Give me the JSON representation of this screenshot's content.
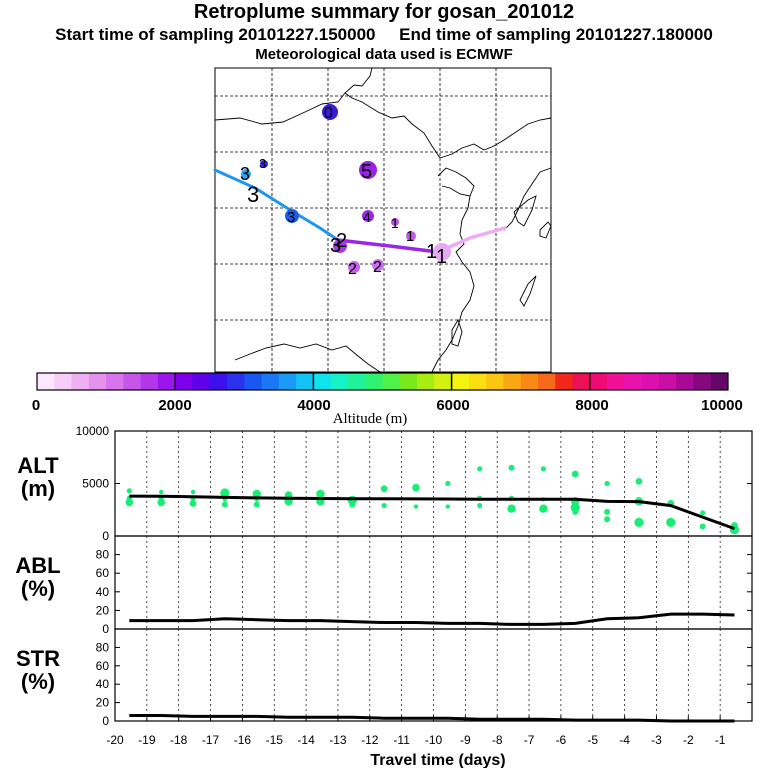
{
  "header": {
    "title": "Retroplume summary for gosan_201012",
    "sampling": "Start time of sampling 20101227.150000     End time of sampling 20101227.180000",
    "meteo": "Meteorological data used is ECMWF"
  },
  "colorbar": {
    "xlabel": "Altitude (m)",
    "ticks": [
      "0",
      "2000",
      "4000",
      "6000",
      "8000",
      "10000"
    ],
    "colors": [
      "#ffe6ff",
      "#f7ccf7",
      "#eeb0f2",
      "#e592ee",
      "#d874ec",
      "#c656ea",
      "#b236ea",
      "#9a16ec",
      "#7e00ea",
      "#5e00ea",
      "#3c10ec",
      "#2a32ee",
      "#1a56f2",
      "#1a78f4",
      "#1a9cf6",
      "#14c2f6",
      "#10e2ee",
      "#14f2c6",
      "#20f29a",
      "#30f270",
      "#50f24a",
      "#78ea1c",
      "#a8ec10",
      "#d4f010",
      "#f4f410",
      "#fae010",
      "#fac610",
      "#faa812",
      "#f88a14",
      "#f46a18",
      "#f0281a",
      "#ec1056",
      "#f00a74",
      "#f01096",
      "#ea12ae",
      "#dc10ae",
      "#c80ea4",
      "#a80a94",
      "#86087e",
      "#620866"
    ]
  },
  "map": {
    "labels": [
      {
        "id": "0",
        "color": "#4a16d8"
      },
      {
        "id": "5",
        "color": "#9e22e6"
      },
      {
        "id": "4",
        "color": "#9a2ae6"
      },
      {
        "id": "3",
        "color": "#1c6ee6"
      },
      {
        "id": "2",
        "color": "#c864ea"
      },
      {
        "id": "1",
        "color": "#e2a8f0"
      }
    ]
  },
  "chart_data": [
    {
      "type": "scatter",
      "panel": "ALT",
      "ylabel": "ALT\n(m)",
      "ylim": [
        0,
        10000
      ],
      "yticks": [
        "0",
        "5000",
        "10000"
      ],
      "xlim": [
        -20,
        0
      ],
      "mean_line": {
        "x": [
          -20,
          -19,
          -18,
          -17,
          -16,
          -15,
          -14,
          -13,
          -12,
          -11,
          -10,
          -9,
          -8,
          -7,
          -6,
          -5,
          -4,
          -3,
          -2,
          -1
        ],
        "y": [
          3800,
          3780,
          3730,
          3680,
          3630,
          3600,
          3570,
          3550,
          3540,
          3530,
          3520,
          3500,
          3500,
          3500,
          3500,
          3300,
          3280,
          2900,
          1800,
          700
        ]
      },
      "points": {
        "x": [
          -20,
          -20,
          -20,
          -19,
          -19,
          -19,
          -18,
          -18,
          -18,
          -17,
          -17,
          -17,
          -16,
          -16,
          -16,
          -15,
          -15,
          -14,
          -14,
          -13,
          -13,
          -12,
          -12,
          -11,
          -11,
          -10,
          -10,
          -9,
          -9,
          -9,
          -8,
          -8,
          -8,
          -7,
          -7,
          -7,
          -6,
          -6,
          -6,
          -6,
          -5,
          -5,
          -5,
          -4,
          -4,
          -4,
          -3,
          -3,
          -2,
          -2,
          -1,
          -1
        ],
        "y": [
          4300,
          3600,
          3200,
          4200,
          3600,
          3200,
          4200,
          3600,
          3100,
          4100,
          3500,
          3000,
          4000,
          3500,
          3000,
          3900,
          3300,
          4000,
          3300,
          3400,
          3000,
          4500,
          2900,
          4600,
          2800,
          5000,
          2800,
          6400,
          3600,
          2900,
          6500,
          3600,
          2600,
          6400,
          3500,
          2600,
          5900,
          3300,
          2700,
          2300,
          5000,
          2300,
          1600,
          5200,
          3300,
          1300,
          3100,
          1300,
          2200,
          900,
          1000,
          600
        ]
      }
    },
    {
      "type": "line",
      "panel": "ABL",
      "ylabel": "ABL\n(%)",
      "ylim": [
        0,
        100
      ],
      "yticks": [
        "0",
        "20",
        "40",
        "60",
        "80"
      ],
      "xlim": [
        -20,
        0
      ],
      "x": [
        -20,
        -19,
        -18,
        -17,
        -16,
        -15,
        -14,
        -13,
        -12,
        -11,
        -10,
        -9,
        -8,
        -7,
        -6,
        -5,
        -4,
        -3,
        -2,
        -1
      ],
      "y": [
        9,
        9,
        9,
        11,
        10,
        9,
        9,
        8,
        7,
        7,
        6,
        6,
        5,
        5,
        6,
        11,
        12,
        16,
        16,
        15
      ]
    },
    {
      "type": "line",
      "panel": "STR",
      "ylabel": "STR\n(%)",
      "ylim": [
        0,
        100
      ],
      "yticks": [
        "0",
        "20",
        "40",
        "60",
        "80"
      ],
      "xlim": [
        -20,
        0
      ],
      "xlabel": "Travel time (days)",
      "xticks": [
        "-20",
        "-19",
        "-18",
        "-17",
        "-16",
        "-15",
        "-14",
        "-13",
        "-12",
        "-11",
        "-10",
        "-9",
        "-8",
        "-7",
        "-6",
        "-5",
        "-4",
        "-3",
        "-2",
        "-1"
      ],
      "x": [
        -20,
        -19,
        -18,
        -17,
        -16,
        -15,
        -14,
        -13,
        -12,
        -11,
        -10,
        -9,
        -8,
        -7,
        -6,
        -5,
        -4,
        -3,
        -2,
        -1
      ],
      "y": [
        6,
        6,
        5,
        5,
        5,
        4,
        4,
        4,
        3,
        3,
        3,
        2,
        2,
        2,
        1,
        1,
        1,
        0,
        0,
        0
      ]
    }
  ]
}
